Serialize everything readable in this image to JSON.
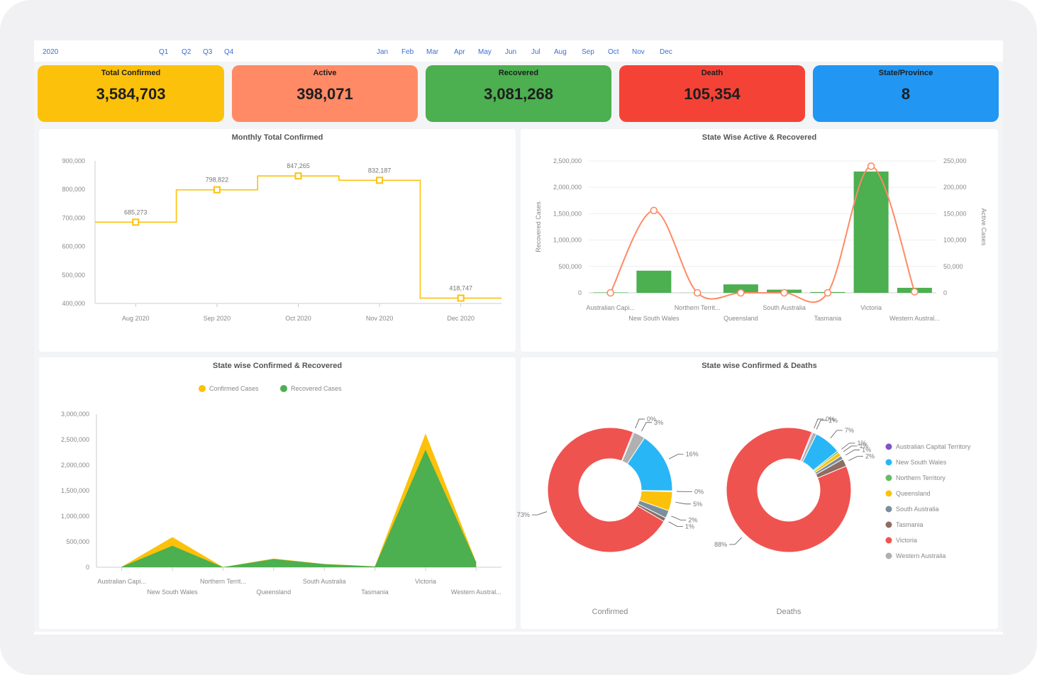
{
  "filters": {
    "year": "2020",
    "quarters": [
      "Q1",
      "Q2",
      "Q3",
      "Q4"
    ],
    "months": [
      "Jan",
      "Feb",
      "Mar",
      "Apr",
      "May",
      "Jun",
      "Jul",
      "Aug",
      "Sep",
      "Oct",
      "Nov",
      "Dec"
    ]
  },
  "kpis": [
    {
      "label": "Total Confirmed",
      "value": "3,584,703",
      "color": "#fcc10a"
    },
    {
      "label": "Active",
      "value": "398,071",
      "color": "#ff8a65"
    },
    {
      "label": "Recovered",
      "value": "3,081,268",
      "color": "#4caf50"
    },
    {
      "label": "Death",
      "value": "105,354",
      "color": "#f44336"
    },
    {
      "label": "State/Province",
      "value": "8",
      "color": "#2196f3"
    }
  ],
  "panels": {
    "monthly": {
      "title": "Monthly Total Confirmed"
    },
    "state_active_recovered": {
      "title": "State Wise Active & Recovered"
    },
    "state_confirmed_recovered": {
      "title": "State wise Confirmed & Recovered"
    },
    "state_confirmed_deaths": {
      "title": "State wise Confirmed & Deaths"
    }
  },
  "chart_data": [
    {
      "type": "line",
      "title": "Monthly Total Confirmed",
      "step": true,
      "categories": [
        "Aug 2020",
        "Sep 2020",
        "Oct 2020",
        "Nov 2020",
        "Dec 2020"
      ],
      "values": [
        685273,
        798822,
        847265,
        832187,
        418747
      ],
      "value_labels": [
        "685,273",
        "798,822",
        "847,265",
        "832,187",
        "418,747"
      ],
      "ylim": [
        400000,
        900000
      ],
      "yticks": [
        "900,000",
        "800,000",
        "700,000",
        "600,000",
        "500,000",
        "400,000"
      ],
      "color": "#fcc10a"
    },
    {
      "type": "bar",
      "title": "State Wise Active & Recovered",
      "categories": [
        "Australian Capi...",
        "New South Wales",
        "Northern Territ...",
        "Queensland",
        "South Australia",
        "Tasmania",
        "Victoria",
        "Western Austral..."
      ],
      "series": [
        {
          "name": "Recovered Cases",
          "type": "bar",
          "axis": "left",
          "values": [
            8000,
            420000,
            2000,
            160000,
            60000,
            15000,
            2300000,
            95000
          ],
          "color": "#4caf50"
        },
        {
          "name": "Active Cases",
          "type": "line",
          "axis": "right",
          "values": [
            0,
            156000,
            0,
            0,
            0,
            0,
            240000,
            2000
          ],
          "color": "#ff8a65"
        }
      ],
      "ylabel": "Recovered Cases",
      "y2label": "Active Cases",
      "ylim": [
        0,
        2500000
      ],
      "y2lim": [
        0,
        250000
      ],
      "yticks": [
        "2,500,000",
        "2,000,000",
        "1,500,000",
        "1,000,000",
        "500,000",
        "0"
      ],
      "y2ticks": [
        "250,000",
        "200,000",
        "150,000",
        "100,000",
        "50,000",
        "0"
      ],
      "grid": true
    },
    {
      "type": "area",
      "title": "State wise Confirmed & Recovered",
      "categories": [
        "Australian Capi...",
        "New South Wales",
        "Northern Territ...",
        "Queensland",
        "South Australia",
        "Tasmania",
        "Victoria",
        "Western Austral..."
      ],
      "series": [
        {
          "name": "Confirmed Cases",
          "values": [
            10000,
            590000,
            3000,
            170000,
            65000,
            18000,
            2620000,
            100000
          ],
          "color": "#fcc10a"
        },
        {
          "name": "Recovered Cases",
          "values": [
            8000,
            420000,
            2000,
            160000,
            60000,
            15000,
            2300000,
            95000
          ],
          "color": "#4caf50"
        }
      ],
      "ylim": [
        0,
        3000000
      ],
      "yticks": [
        "3,000,000",
        "2,500,000",
        "2,000,000",
        "1,500,000",
        "1,000,000",
        "500,000",
        "0"
      ],
      "legend": "top"
    },
    {
      "type": "pie",
      "title": "State wise Confirmed & Deaths",
      "donut": true,
      "charts": [
        {
          "name": "Confirmed",
          "slices": [
            {
              "label": "Australian Capital Territory",
              "value": 0.3,
              "text": "0%"
            },
            {
              "label": "Western Australia",
              "value": 3,
              "text": "3%"
            },
            {
              "label": "New South Wales",
              "value": 16,
              "text": "16%"
            },
            {
              "label": "Northern Territory",
              "value": 0.2,
              "text": "0%"
            },
            {
              "label": "Queensland",
              "value": 5,
              "text": "5%"
            },
            {
              "label": "South Australia",
              "value": 2,
              "text": "2%"
            },
            {
              "label": "Tasmania",
              "value": 1,
              "text": "1%"
            },
            {
              "label": "Victoria",
              "value": 73,
              "text": "73%"
            }
          ]
        },
        {
          "name": "Deaths",
          "slices": [
            {
              "label": "Australian Capital Territory",
              "value": 0.3,
              "text": "0%"
            },
            {
              "label": "Western Australia",
              "value": 1,
              "text": "1%"
            },
            {
              "label": "New South Wales",
              "value": 7,
              "text": "7%"
            },
            {
              "label": "Northern Territory",
              "value": 0.5,
              "text": "1%"
            },
            {
              "label": "Queensland",
              "value": 1,
              "text": "1%"
            },
            {
              "label": "South Australia",
              "value": 1,
              "text": "1%"
            },
            {
              "label": "Tasmania",
              "value": 2,
              "text": "2%"
            },
            {
              "label": "Victoria",
              "value": 88,
              "text": "88%"
            }
          ]
        }
      ],
      "legend": {
        "placement": "right",
        "items": [
          {
            "label": "Australian Capital Territory",
            "color": "#7e57c2"
          },
          {
            "label": "New South Wales",
            "color": "#29b6f6"
          },
          {
            "label": "Northern Territory",
            "color": "#66bb6a"
          },
          {
            "label": "Queensland",
            "color": "#fcc10a"
          },
          {
            "label": "South Australia",
            "color": "#78909c"
          },
          {
            "label": "Tasmania",
            "color": "#8d6e63"
          },
          {
            "label": "Victoria",
            "color": "#ef5350"
          },
          {
            "label": "Western Australia",
            "color": "#b0b0b0"
          }
        ]
      }
    }
  ]
}
